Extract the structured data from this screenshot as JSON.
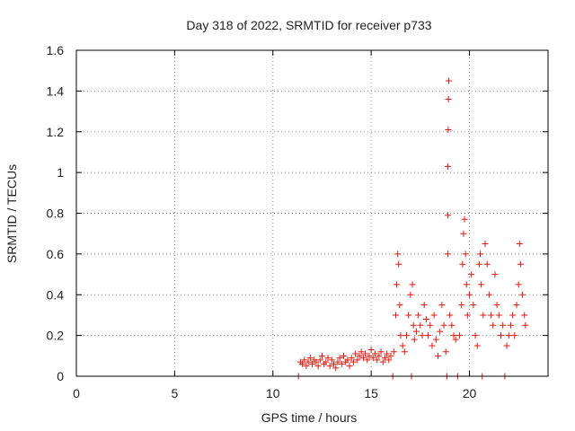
{
  "chart_data": {
    "type": "scatter",
    "title": "Day 318 of 2022, SRMTID for receiver p733",
    "xlabel": "GPS time / hours",
    "ylabel": "SRMTID / TECUs",
    "xlim": [
      0,
      24
    ],
    "ylim": [
      0,
      1.6
    ],
    "xticks": [
      0,
      5,
      10,
      15,
      20
    ],
    "xtick_labels": [
      "0",
      "5",
      "10",
      "15",
      "20"
    ],
    "yticks": [
      0,
      0.2,
      0.4,
      0.6,
      0.8,
      1.0,
      1.2,
      1.4,
      1.6
    ],
    "ytick_labels": [
      "0",
      "0.2",
      "0.4",
      "0.6",
      "0.8",
      "1",
      "1.2",
      "1.4",
      "1.6"
    ],
    "grid": true,
    "marker": "+",
    "color": "#e8170f",
    "series": [
      {
        "name": "SRMTID",
        "points": [
          [
            11.3,
            0.0
          ],
          [
            11.4,
            0.07
          ],
          [
            11.5,
            0.06
          ],
          [
            11.6,
            0.08
          ],
          [
            11.7,
            0.05
          ],
          [
            11.8,
            0.07
          ],
          [
            11.9,
            0.09
          ],
          [
            12.0,
            0.06
          ],
          [
            12.1,
            0.08
          ],
          [
            12.2,
            0.07
          ],
          [
            12.3,
            0.05
          ],
          [
            12.4,
            0.08
          ],
          [
            12.5,
            0.1
          ],
          [
            12.6,
            0.06
          ],
          [
            12.7,
            0.07
          ],
          [
            12.8,
            0.09
          ],
          [
            12.9,
            0.05
          ],
          [
            13.0,
            0.08
          ],
          [
            13.1,
            0.06
          ],
          [
            13.2,
            0.04
          ],
          [
            13.3,
            0.07
          ],
          [
            13.4,
            0.09
          ],
          [
            13.5,
            0.06
          ],
          [
            13.6,
            0.1
          ],
          [
            13.7,
            0.07
          ],
          [
            13.8,
            0.08
          ],
          [
            13.9,
            0.05
          ],
          [
            14.0,
            0.09
          ],
          [
            14.1,
            0.07
          ],
          [
            14.2,
            0.11
          ],
          [
            14.3,
            0.08
          ],
          [
            14.4,
            0.1
          ],
          [
            14.5,
            0.12
          ],
          [
            14.6,
            0.09
          ],
          [
            14.7,
            0.11
          ],
          [
            14.8,
            0.08
          ],
          [
            14.9,
            0.1
          ],
          [
            15.0,
            0.13
          ],
          [
            15.1,
            0.09
          ],
          [
            15.2,
            0.11
          ],
          [
            15.3,
            0.08
          ],
          [
            15.4,
            0.1
          ],
          [
            15.5,
            0.12
          ],
          [
            15.6,
            0.07
          ],
          [
            15.7,
            0.09
          ],
          [
            15.8,
            0.11
          ],
          [
            15.9,
            0.08
          ],
          [
            16.0,
            0.1
          ],
          [
            16.1,
            0.0
          ],
          [
            16.15,
            0.12
          ],
          [
            16.25,
            0.3
          ],
          [
            16.3,
            0.45
          ],
          [
            16.35,
            0.6
          ],
          [
            16.4,
            0.55
          ],
          [
            16.45,
            0.35
          ],
          [
            16.5,
            0.2
          ],
          [
            16.6,
            0.15
          ],
          [
            16.7,
            0.12
          ],
          [
            16.8,
            0.2
          ],
          [
            16.9,
            0.3
          ],
          [
            17.0,
            0.4
          ],
          [
            17.05,
            0.0
          ],
          [
            17.1,
            0.45
          ],
          [
            17.15,
            0.25
          ],
          [
            17.2,
            0.18
          ],
          [
            17.3,
            0.22
          ],
          [
            17.4,
            0.3
          ],
          [
            17.5,
            0.25
          ],
          [
            17.6,
            0.2
          ],
          [
            17.7,
            0.35
          ],
          [
            17.8,
            0.28
          ],
          [
            17.9,
            0.2
          ],
          [
            18.0,
            0.25
          ],
          [
            18.1,
            0.15
          ],
          [
            18.2,
            0.3
          ],
          [
            18.3,
            0.18
          ],
          [
            18.4,
            0.1
          ],
          [
            18.5,
            0.22
          ],
          [
            18.6,
            0.35
          ],
          [
            18.7,
            0.25
          ],
          [
            18.8,
            0.12
          ],
          [
            18.85,
            0.0
          ],
          [
            18.9,
            0.6
          ],
          [
            18.9,
            0.79
          ],
          [
            18.9,
            1.03
          ],
          [
            18.92,
            1.21
          ],
          [
            18.93,
            1.36
          ],
          [
            18.95,
            1.45
          ],
          [
            19.0,
            0.3
          ],
          [
            19.1,
            0.25
          ],
          [
            19.2,
            0.2
          ],
          [
            19.3,
            0.18
          ],
          [
            19.4,
            0.0
          ],
          [
            19.5,
            0.2
          ],
          [
            19.6,
            0.35
          ],
          [
            19.65,
            0.55
          ],
          [
            19.7,
            0.7
          ],
          [
            19.75,
            0.77
          ],
          [
            19.8,
            0.6
          ],
          [
            19.85,
            0.45
          ],
          [
            19.9,
            0.3
          ],
          [
            20.0,
            0.4
          ],
          [
            20.1,
            0.5
          ],
          [
            20.2,
            0.35
          ],
          [
            20.3,
            0.2
          ],
          [
            20.4,
            0.15
          ],
          [
            20.5,
            0.55
          ],
          [
            20.55,
            0.6
          ],
          [
            20.6,
            0.45
          ],
          [
            20.65,
            0.0
          ],
          [
            20.7,
            0.3
          ],
          [
            20.8,
            0.65
          ],
          [
            20.9,
            0.55
          ],
          [
            21.0,
            0.4
          ],
          [
            21.1,
            0.3
          ],
          [
            21.2,
            0.25
          ],
          [
            21.3,
            0.5
          ],
          [
            21.4,
            0.35
          ],
          [
            21.5,
            0.3
          ],
          [
            21.6,
            0.2
          ],
          [
            21.7,
            0.25
          ],
          [
            21.8,
            0.0
          ],
          [
            21.9,
            0.15
          ],
          [
            22.0,
            0.2
          ],
          [
            22.1,
            0.25
          ],
          [
            22.2,
            0.3
          ],
          [
            22.3,
            0.2
          ],
          [
            22.4,
            0.35
          ],
          [
            22.5,
            0.45
          ],
          [
            22.55,
            0.65
          ],
          [
            22.6,
            0.55
          ],
          [
            22.7,
            0.4
          ],
          [
            22.8,
            0.3
          ],
          [
            22.85,
            0.25
          ]
        ]
      }
    ]
  }
}
